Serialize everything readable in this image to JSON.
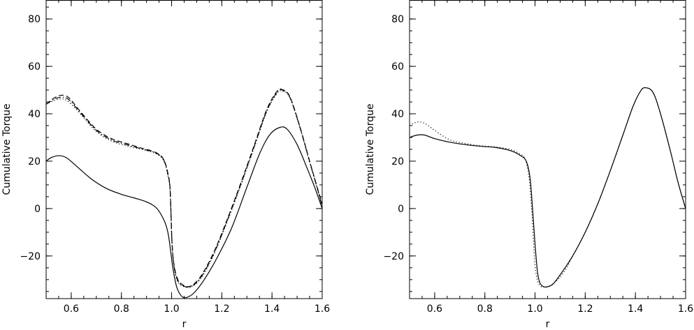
{
  "chart_data": [
    {
      "type": "line",
      "xlabel": "r",
      "ylabel": "Cumulative Torque",
      "xlim": [
        0.5,
        1.6
      ],
      "ylim": [
        -38,
        88
      ],
      "xticks": [
        0.6,
        0.8,
        1.0,
        1.2,
        1.4,
        1.6
      ],
      "xtick_labels": [
        "0.6",
        "0.8",
        "1.0",
        "1.2",
        "1.4",
        "1.6"
      ],
      "yticks": [
        -20,
        0,
        20,
        40,
        60,
        80
      ],
      "ytick_labels": [
        "−20",
        "0",
        "20",
        "40",
        "60",
        "80"
      ],
      "grid": false,
      "series": [
        {
          "style": "solid",
          "x": [
            0.5,
            0.52,
            0.55,
            0.58,
            0.62,
            0.68,
            0.74,
            0.8,
            0.85,
            0.9,
            0.94,
            0.97,
            0.985,
            0.995,
            1.005,
            1.02,
            1.04,
            1.06,
            1.09,
            1.13,
            1.18,
            1.24,
            1.3,
            1.35,
            1.39,
            1.43,
            1.46,
            1.5,
            1.54,
            1.57,
            1.6
          ],
          "y": [
            20,
            21.5,
            22.3,
            21.5,
            18,
            12.5,
            8.5,
            6,
            4.5,
            2.8,
            0.2,
            -5,
            -10,
            -17,
            -25,
            -33,
            -37,
            -37.5,
            -35.5,
            -30,
            -21,
            -8,
            9,
            23,
            31,
            34.2,
            33.5,
            27,
            17,
            9,
            0
          ]
        },
        {
          "style": "dashed",
          "x": [
            0.5,
            0.53,
            0.56,
            0.59,
            0.64,
            0.7,
            0.76,
            0.82,
            0.88,
            0.93,
            0.96,
            0.975,
            0.985,
            0.993,
            0.997,
            1.002,
            1.01,
            1.025,
            1.05,
            1.08,
            1.12,
            1.17,
            1.22,
            1.28,
            1.33,
            1.38,
            1.42,
            1.44,
            1.47,
            1.51,
            1.55,
            1.58,
            1.6
          ],
          "y": [
            44,
            46.5,
            47.8,
            46.8,
            40.5,
            33.5,
            29.5,
            27.5,
            25.5,
            24,
            22,
            19,
            15,
            10,
            0,
            -15,
            -24,
            -30,
            -32.5,
            -32.5,
            -28,
            -18,
            -5,
            12,
            27,
            42,
            49.5,
            50.2,
            47.5,
            35,
            20,
            9,
            2
          ]
        },
        {
          "style": "dotted",
          "x": [
            0.5,
            0.53,
            0.56,
            0.59,
            0.64,
            0.7,
            0.76,
            0.82,
            0.88,
            0.93,
            0.96,
            0.975,
            0.985,
            0.993,
            0.997,
            1.002,
            1.01,
            1.025,
            1.05,
            1.08,
            1.12,
            1.17,
            1.22,
            1.28,
            1.33,
            1.38,
            1.42,
            1.44,
            1.47,
            1.51,
            1.55,
            1.58,
            1.6
          ],
          "y": [
            44,
            45.5,
            46.3,
            45,
            39.5,
            32.5,
            28.5,
            26.5,
            25,
            23.5,
            21.5,
            18.5,
            14,
            9,
            -1,
            -16,
            -25,
            -31,
            -33,
            -33,
            -29,
            -19,
            -6,
            11,
            26,
            41,
            48.5,
            49.5,
            47,
            34.5,
            19.5,
            8.5,
            0
          ]
        },
        {
          "style": "dashdot",
          "x": [
            0.5,
            0.53,
            0.56,
            0.59,
            0.64,
            0.7,
            0.76,
            0.82,
            0.88,
            0.93,
            0.96,
            0.975,
            0.985,
            0.993,
            0.997,
            1.002,
            1.01,
            1.025,
            1.05,
            1.08,
            1.12,
            1.17,
            1.22,
            1.28,
            1.33,
            1.38,
            1.42,
            1.44,
            1.47,
            1.51,
            1.55,
            1.58,
            1.6
          ],
          "y": [
            44,
            46,
            47,
            46,
            40,
            33,
            29,
            27,
            25.2,
            23.8,
            21.8,
            18.8,
            14.5,
            9.5,
            -0.5,
            -15.5,
            -24.5,
            -30.5,
            -32.8,
            -32.8,
            -28.5,
            -18.5,
            -5.5,
            11.5,
            26.5,
            41.5,
            49,
            50,
            47.2,
            34.8,
            19.8,
            8.8,
            1
          ]
        }
      ]
    },
    {
      "type": "line",
      "xlabel": "r",
      "ylabel": "Cumulative Torque",
      "xlim": [
        0.5,
        1.6
      ],
      "ylim": [
        -38,
        88
      ],
      "xticks": [
        0.6,
        0.8,
        1.0,
        1.2,
        1.4,
        1.6
      ],
      "xtick_labels": [
        "0.6",
        "0.8",
        "1.0",
        "1.2",
        "1.4",
        "1.6"
      ],
      "yticks": [
        -20,
        0,
        20,
        40,
        60,
        80
      ],
      "ytick_labels": [
        "−20",
        "0",
        "20",
        "40",
        "60",
        "80"
      ],
      "grid": false,
      "series": [
        {
          "style": "solid",
          "x": [
            0.5,
            0.53,
            0.56,
            0.6,
            0.66,
            0.72,
            0.78,
            0.84,
            0.9,
            0.94,
            0.965,
            0.98,
            0.99,
            1.0,
            1.01,
            1.02,
            1.035,
            1.05,
            1.07,
            1.1,
            1.15,
            1.2,
            1.25,
            1.3,
            1.35,
            1.39,
            1.42,
            1.44,
            1.47,
            1.5,
            1.54,
            1.57,
            1.6
          ],
          "y": [
            30,
            31,
            31,
            29.5,
            28,
            27,
            26.3,
            25.8,
            24.5,
            22.5,
            20,
            13,
            0,
            -15,
            -27,
            -31.5,
            -33,
            -33,
            -32,
            -28,
            -20,
            -10,
            2,
            16,
            31,
            43,
            49.5,
            51,
            49,
            40,
            24,
            11,
            0
          ]
        },
        {
          "style": "dotted",
          "x": [
            0.5,
            0.53,
            0.56,
            0.6,
            0.66,
            0.72,
            0.78,
            0.84,
            0.9,
            0.94,
            0.96,
            0.975,
            0.985,
            0.993,
            1.0,
            1.01,
            1.025,
            1.04,
            1.06,
            1.09,
            1.12,
            1.15,
            1.2,
            1.25,
            1.3,
            1.35,
            1.39,
            1.42,
            1.44,
            1.47,
            1.5,
            1.54,
            1.57,
            1.6
          ],
          "y": [
            35,
            36.5,
            36,
            33,
            29,
            27.5,
            26.5,
            26,
            25,
            23,
            21,
            14,
            2,
            -12,
            -24,
            -30.5,
            -33,
            -33,
            -32.5,
            -30,
            -26,
            -20,
            -10,
            2,
            16,
            31,
            43,
            49.5,
            51,
            49,
            40,
            24,
            11,
            0
          ]
        }
      ]
    }
  ]
}
